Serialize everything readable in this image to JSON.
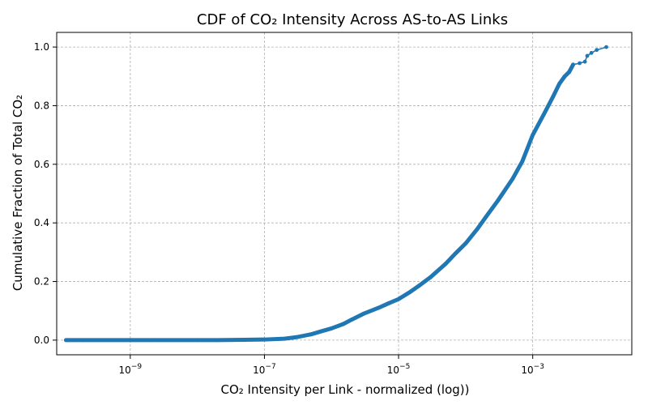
{
  "chart_data": {
    "type": "line",
    "title": "CDF of CO₂ Intensity Across AS-to-AS Links",
    "xlabel": "CO₂ Intensity per Link - normalized (log))",
    "ylabel": "Cumulative Fraction of Total CO₂",
    "x_scale": "log",
    "xlim": [
      8e-11,
      0.03
    ],
    "ylim": [
      -0.05,
      1.05
    ],
    "x_ticks": [
      {
        "value": 1e-09,
        "base": "10",
        "exp": "−9"
      },
      {
        "value": 1e-07,
        "base": "10",
        "exp": "−7"
      },
      {
        "value": 1e-05,
        "base": "10",
        "exp": "−5"
      },
      {
        "value": 0.001,
        "base": "10",
        "exp": "−3"
      }
    ],
    "y_ticks": [
      {
        "value": 0.0,
        "label": "0.0"
      },
      {
        "value": 0.2,
        "label": "0.2"
      },
      {
        "value": 0.4,
        "label": "0.4"
      },
      {
        "value": 0.6,
        "label": "0.6"
      },
      {
        "value": 0.8,
        "label": "0.8"
      },
      {
        "value": 1.0,
        "label": "1.0"
      }
    ],
    "grid": true,
    "marker": "dot",
    "color": "#1f77b4",
    "series": [
      {
        "x": [
          1.1e-10,
          1.5e-10,
          2e-10,
          3e-10,
          5e-10,
          8e-10,
          1e-09,
          2e-09,
          5e-09,
          1e-08,
          2e-08,
          5e-08,
          1e-07,
          2e-07,
          3e-07,
          5e-07,
          7e-07,
          1e-06,
          1.5e-06,
          2e-06,
          3e-06,
          5e-06,
          7e-06,
          1e-05,
          1.5e-05,
          2e-05,
          3e-05,
          5e-05,
          7e-05,
          0.0001,
          0.00015,
          0.0002,
          0.0003,
          0.0005,
          0.0007,
          0.001,
          0.0015,
          0.002,
          0.0025,
          0.003,
          0.0035,
          0.004,
          0.005,
          0.006,
          0.0065,
          0.0075,
          0.009,
          0.0125
        ],
        "y": [
          0.0,
          0.0,
          0.0,
          0.0,
          0.0,
          0.0,
          0.0,
          0.0,
          0.0,
          0.0,
          0.0,
          0.001,
          0.002,
          0.005,
          0.01,
          0.02,
          0.03,
          0.04,
          0.055,
          0.07,
          0.09,
          0.11,
          0.125,
          0.14,
          0.165,
          0.185,
          0.215,
          0.26,
          0.295,
          0.33,
          0.38,
          0.42,
          0.475,
          0.55,
          0.61,
          0.7,
          0.775,
          0.83,
          0.875,
          0.9,
          0.915,
          0.94,
          0.945,
          0.95,
          0.97,
          0.98,
          0.99,
          1.0
        ]
      }
    ]
  }
}
